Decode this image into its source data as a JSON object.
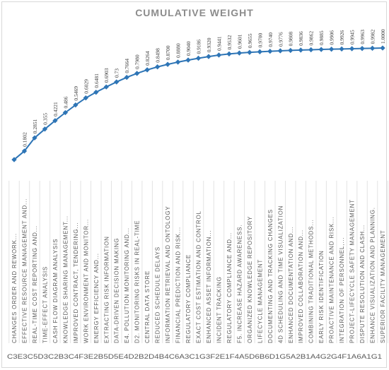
{
  "chart_data": {
    "type": "line",
    "title": "CUMULATIVE WEIGHT",
    "codes": "C3E3C5D3C2B3C4F3E2B5D5E4D2B2D4B4C6A3C1G3F2E1F4A5D6B6D1G5A2B1A4G2G4F1A6A1G1",
    "series_color": "#2e75b6",
    "categories": [
      "CHANGES ORDER AND REWORK...",
      "EFFECTIVE RESOURCE MANAGEMENT AND...",
      "REAL-TIME COST REPORTING AND...",
      "TIME-EFFECT ANALYSIS",
      "CASH FLOW DIAGRAM ANALYSIS",
      "KNOWLEDGE SHARING MANAGEMENT...",
      "IMPROVED CONTRACT, TENDERING...",
      "WORK ENVIRONMENT AND MONITOR...",
      "ENERGY EFFICIENCY AND...",
      "EXTRACTING RISK INFORMATION",
      "DATA-DRIVEN DECISION MAKING",
      "E4. POLLUTION MONITORING AND...",
      "D2. MONITORING RISKS IN REAL-TIME",
      "CENTRAL DATA STORE",
      "REDUCED SCHEDULE DELAYS",
      "INFORMATION RETRIEVAL AND ONTOLOGY",
      "FINANCIAL PREDICTION AND RISK...",
      "REGULATORY COMPLIANCE",
      "EXACT COST ESTIMATION AND CONTROL",
      "ENHANCED ASSET INFORMATION...",
      "INCIDENT TRACKING",
      "REGULATORY COMPLIANCE AND...",
      "F5. INCREASE HAZARD AWARENESS.",
      "ORGANIZED KNOWLEDGE REPOSITORY",
      "LIFECYCLE MANAGEMENT",
      "DOCUMENTING AND TRACKING CHANGES",
      "4D SCHEDULING AND TIME VISUALIZATION",
      "ENHANCED DOCUMENTATION AND...",
      "IMPROVED COLLABORATION AND...",
      "COMBINING TRADITIONAL METHODS...",
      "EARLY RISK IDENTIFICATION",
      "PROACTIVE MAINTENANCE AND RISK...",
      "INTEGRATION OF PERSONNEL,...",
      "PROJECT-LIFECYCLE SAFETY MANAGEMENT",
      "DISPUTE RESOLUTION AND CLASH...",
      "ENHANCE VISUALIZATION AND PLANNING.",
      "SUPERIOR FACILITY MANAGEMENT"
    ],
    "values": [
      0.112,
      0.1802,
      0.2851,
      0.355,
      0.4221,
      0.486,
      0.5469,
      0.6029,
      0.6481,
      0.6903,
      0.73,
      0.7664,
      0.798,
      0.8264,
      0.8498,
      0.87,
      0.888,
      0.904,
      0.9186,
      0.932,
      0.9441,
      0.9532,
      0.9601,
      0.9655,
      0.97,
      0.974,
      0.9776,
      0.9808,
      0.9836,
      0.9862,
      0.9885,
      0.9906,
      0.9926,
      0.9945,
      0.9963,
      0.9982,
      1.0
    ],
    "data_labels": [
      "",
      "0.1802",
      "0.2851",
      "0.355",
      "0.4221",
      "0.486",
      "0.5469",
      "0.6029",
      "0.6481",
      "0.6903",
      "0.73",
      "0.7664",
      "0.7980",
      "0.8264",
      "0.8498",
      "0.8700",
      "0.8880",
      "0.9040",
      "0.9186",
      "0.9320",
      "0.9441",
      "0.9532",
      "0.9601",
      "0.9655",
      "0.9700",
      "0.9740",
      "0.9776",
      "0.9808",
      "0.9836",
      "0.9862",
      "0.9885",
      "0.9906",
      "0.9926",
      "0.9945",
      "0.9963",
      "0.9982",
      "1.0000"
    ],
    "ylim": [
      0,
      1.0
    ],
    "grid": false,
    "legend": "none"
  }
}
